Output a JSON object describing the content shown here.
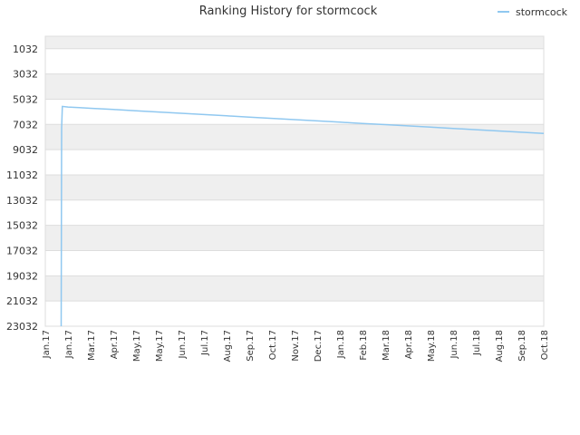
{
  "chart_data": {
    "type": "line",
    "title": "Ranking History for stormcock",
    "xlabel": "",
    "ylabel": "",
    "y_inverted": true,
    "ylim": [
      23032,
      42
    ],
    "y_ticks": [
      1032,
      3032,
      5032,
      7032,
      9032,
      11032,
      13032,
      15032,
      17032,
      19032,
      21032,
      23032
    ],
    "x_ticks": [
      "Jan.17",
      "Jan.17",
      "Mar.17",
      "Apr.17",
      "May.17",
      "May.17",
      "Jun.17",
      "Jul.17",
      "Aug.17",
      "Sep.17",
      "Oct.17",
      "Nov.17",
      "Dec.17",
      "Jan.18",
      "Feb.18",
      "Mar.18",
      "Apr.18",
      "May.18",
      "Jun.18",
      "Jul.18",
      "Aug.18",
      "Sep.18",
      "Oct.18"
    ],
    "grid": true,
    "legend_position": "top-right",
    "colors": {
      "series": "#90c8f0",
      "band": "#efefef",
      "grid": "#dddddd"
    },
    "series": [
      {
        "name": "stormcock",
        "x": [
          0.7,
          0.72,
          0.75,
          1.0,
          1.5,
          2.0,
          3.0,
          4.0,
          5.0,
          6.0,
          7.0,
          8.0,
          9.0,
          10.0,
          11.0,
          12.0,
          13.0,
          14.0,
          15.0,
          16.0,
          17.0,
          18.0,
          19.0,
          20.0,
          21.0,
          22.0
        ],
        "values": [
          23032,
          7300,
          5600,
          5650,
          5700,
          5750,
          5850,
          5950,
          6050,
          6150,
          6250,
          6350,
          6450,
          6550,
          6650,
          6750,
          6850,
          6950,
          7050,
          7150,
          7250,
          7350,
          7450,
          7550,
          7650,
          7750
        ]
      }
    ]
  }
}
